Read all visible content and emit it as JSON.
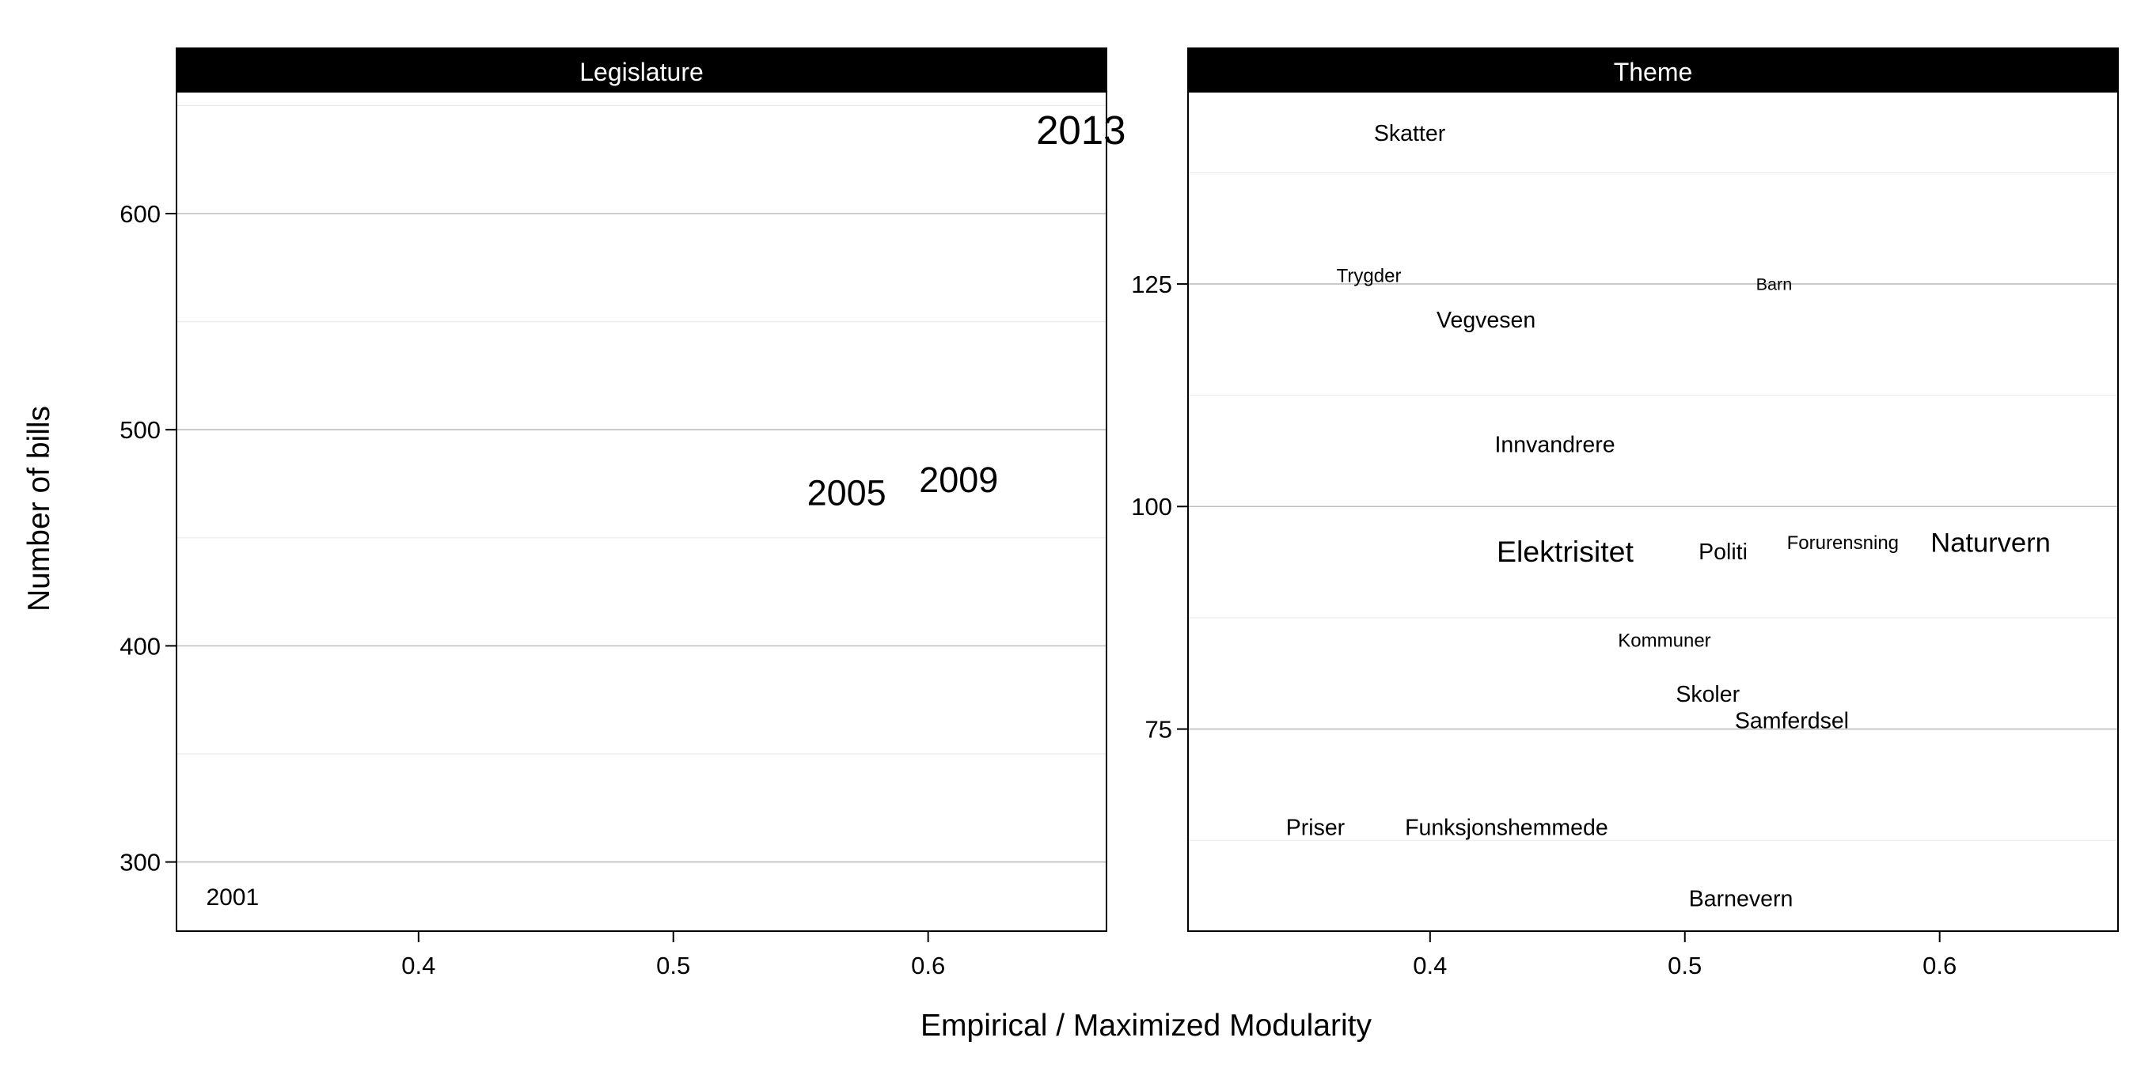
{
  "chart_data": {
    "type": "scatter",
    "marker": "text-labels",
    "xlabel": "Empirical / Maximized Modularity",
    "ylabel": "Number of bills",
    "grid": "horizontal",
    "colors": {
      "strip": "#000000",
      "strip_text": "#ffffff",
      "major_grid": "#bebebe",
      "minor_grid": "#ececec",
      "frame": "#000000",
      "text": "#000000"
    },
    "panels": [
      {
        "id": "legislature",
        "title": "Legislature",
        "xlim": [
          0.305,
          0.67
        ],
        "ylim": [
          268,
          656
        ],
        "xticks": [
          0.4,
          0.5,
          0.6
        ],
        "xtick_labels": [
          "0.4",
          "0.5",
          "0.6"
        ],
        "yticks": [
          300,
          400,
          500,
          600
        ],
        "ytick_labels": [
          "300",
          "400",
          "500",
          "600"
        ],
        "minor_yticks": [
          350,
          450,
          550,
          650
        ],
        "points": [
          {
            "label": "2001",
            "x": 0.327,
            "y": 284,
            "size": 1.0
          },
          {
            "label": "2005",
            "x": 0.568,
            "y": 471,
            "size": 1.5
          },
          {
            "label": "2009",
            "x": 0.612,
            "y": 477,
            "size": 1.5
          },
          {
            "label": "2013",
            "x": 0.66,
            "y": 639,
            "size": 1.7
          }
        ]
      },
      {
        "id": "theme",
        "title": "Theme",
        "xlim": [
          0.305,
          0.67
        ],
        "ylim": [
          52.3,
          146.5
        ],
        "xticks": [
          0.4,
          0.5,
          0.6
        ],
        "xtick_labels": [
          "0.4",
          "0.5",
          "0.6"
        ],
        "yticks": [
          75,
          100,
          125
        ],
        "ytick_labels": [
          "75",
          "100",
          "125"
        ],
        "minor_yticks": [
          62.5,
          87.5,
          112.5,
          137.5
        ],
        "points": [
          {
            "label": "Skatter",
            "x": 0.392,
            "y": 142,
            "size": 0.95
          },
          {
            "label": "Trygder",
            "x": 0.376,
            "y": 126,
            "size": 0.8
          },
          {
            "label": "Barn",
            "x": 0.535,
            "y": 125,
            "size": 0.72
          },
          {
            "label": "Vegvesen",
            "x": 0.422,
            "y": 121,
            "size": 0.95
          },
          {
            "label": "Innvandrere",
            "x": 0.449,
            "y": 107,
            "size": 0.95
          },
          {
            "label": "Elektrisitet",
            "x": 0.453,
            "y": 95,
            "size": 1.25
          },
          {
            "label": "Politi",
            "x": 0.515,
            "y": 95,
            "size": 0.95
          },
          {
            "label": "Forurensning",
            "x": 0.562,
            "y": 96,
            "size": 0.8
          },
          {
            "label": "Naturvern",
            "x": 0.62,
            "y": 96,
            "size": 1.15
          },
          {
            "label": "Kommuner",
            "x": 0.492,
            "y": 85,
            "size": 0.8
          },
          {
            "label": "Skoler",
            "x": 0.509,
            "y": 79,
            "size": 0.95
          },
          {
            "label": "Samferdsel",
            "x": 0.542,
            "y": 76,
            "size": 0.95
          },
          {
            "label": "Priser",
            "x": 0.355,
            "y": 64,
            "size": 0.95
          },
          {
            "label": "Funksjonshemmede",
            "x": 0.43,
            "y": 64,
            "size": 0.95
          },
          {
            "label": "Barnevern",
            "x": 0.522,
            "y": 56,
            "size": 0.95
          }
        ]
      }
    ]
  }
}
